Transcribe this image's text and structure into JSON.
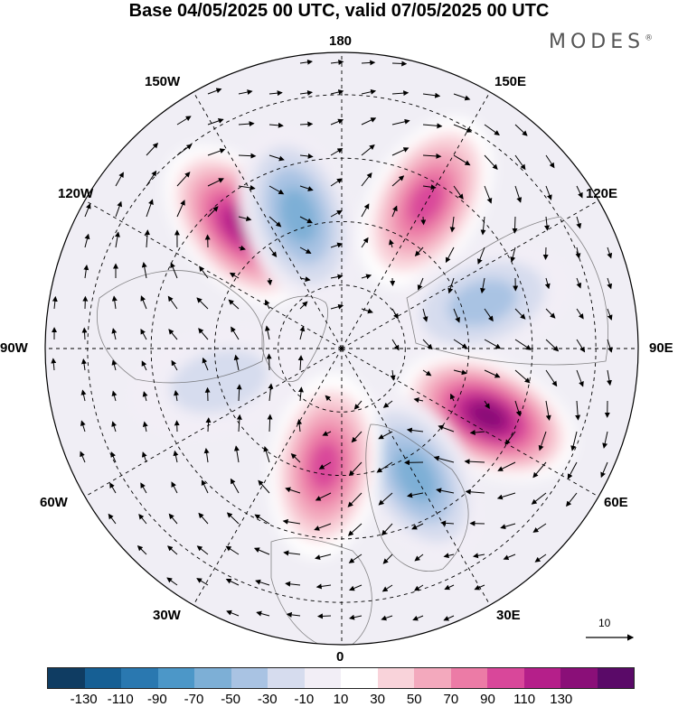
{
  "title": "Base 04/05/2025 00 UTC, valid 07/05/2025 00 UTC",
  "logo": {
    "text": "MODES",
    "mark": "®"
  },
  "longitude_labels": {
    "top": "180",
    "top_left": "150W",
    "top_right": "150E",
    "upper_left": "120W",
    "upper_right": "120E",
    "left": "90W",
    "right": "90E",
    "lower_left": "60W",
    "lower_right": "60E",
    "bottom_left": "30W",
    "bottom_right": "30E",
    "bottom": "0"
  },
  "reference_vector": {
    "label": "10"
  },
  "colorbar": {
    "colors": [
      "#0f3c62",
      "#165f94",
      "#2a78b0",
      "#4c97c8",
      "#7dafd6",
      "#a9c3e3",
      "#d6dcee",
      "#f2eef6",
      "#ffffff",
      "#f9d3da",
      "#f3a9bd",
      "#ec7ba6",
      "#d9479a",
      "#b51f8a",
      "#8a0f78",
      "#5a0a68"
    ],
    "ticks": [
      "-130",
      "-110",
      "-90",
      "-70",
      "-50",
      "-30",
      "-10",
      "10",
      "30",
      "50",
      "70",
      "90",
      "110",
      "130"
    ]
  },
  "anomaly_centers": [
    {
      "lon": -140,
      "lat": 52,
      "value": 115,
      "sign": "positive"
    },
    {
      "lon": -162,
      "lat": 57,
      "value": -75,
      "sign": "negative"
    },
    {
      "lon": 150,
      "lat": 50,
      "value": 100,
      "sign": "positive"
    },
    {
      "lon": 108,
      "lat": 55,
      "value": -55,
      "sign": "negative"
    },
    {
      "lon": 65,
      "lat": 52,
      "value": 125,
      "sign": "positive"
    },
    {
      "lon": 30,
      "lat": 55,
      "value": -80,
      "sign": "negative"
    },
    {
      "lon": -8,
      "lat": 62,
      "value": 85,
      "sign": "positive"
    },
    {
      "lon": -75,
      "lat": 60,
      "value": -40,
      "sign": "negative"
    }
  ]
}
